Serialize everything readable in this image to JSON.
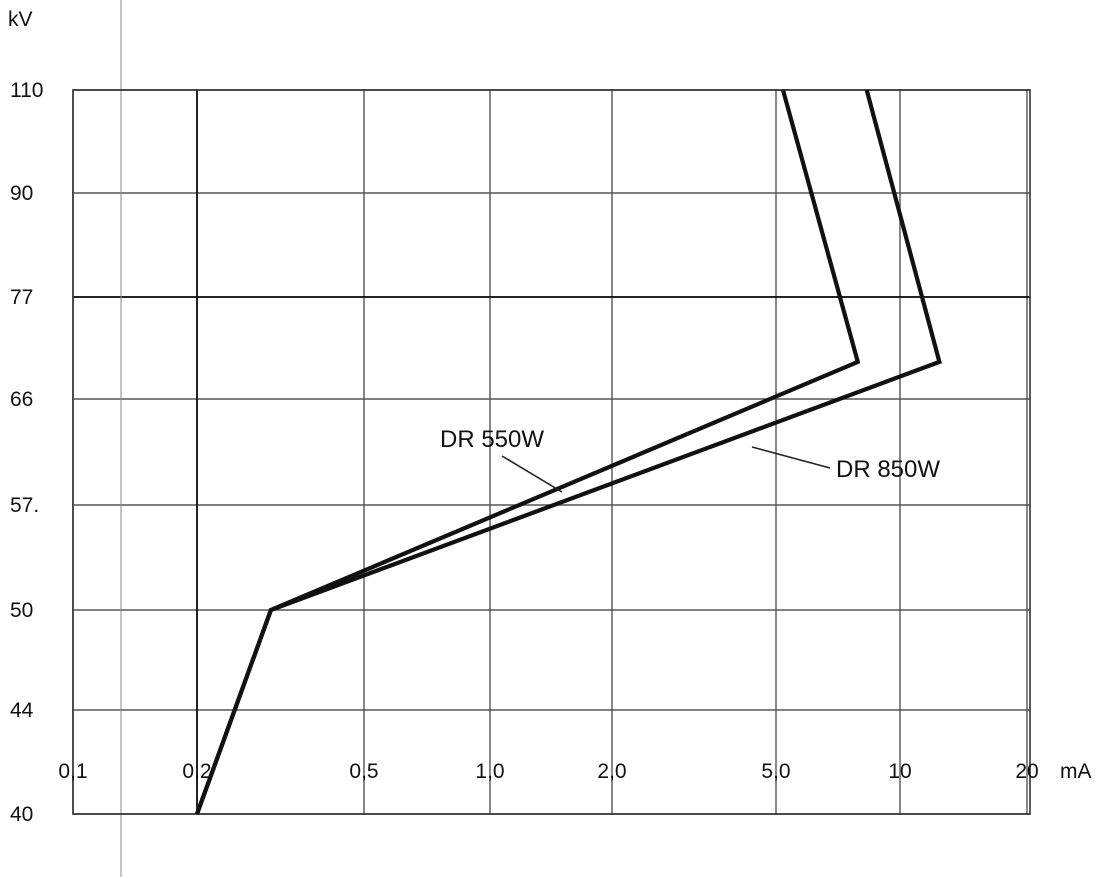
{
  "chart_data": {
    "type": "line",
    "xscale": "log",
    "yscale": "categorical-linear",
    "xlabel": "mA",
    "ylabel": "kV",
    "x_ticks": [
      {
        "value": 0.1,
        "label": "0,1"
      },
      {
        "value": 0.2,
        "label": "0,2"
      },
      {
        "value": 0.5,
        "label": "0,5"
      },
      {
        "value": 1.0,
        "label": "1,0"
      },
      {
        "value": 2.0,
        "label": "2,0"
      },
      {
        "value": 5.0,
        "label": "5,0"
      },
      {
        "value": 10,
        "label": "10"
      },
      {
        "value": 20,
        "label": "20"
      }
    ],
    "y_ticks": [
      {
        "value": 40,
        "label": "40"
      },
      {
        "value": 44,
        "label": "44"
      },
      {
        "value": 50,
        "label": "50"
      },
      {
        "value": 57,
        "label": "57."
      },
      {
        "value": 66,
        "label": "66"
      },
      {
        "value": 77,
        "label": "77"
      },
      {
        "value": 90,
        "label": "90"
      },
      {
        "value": 110,
        "label": "110"
      }
    ],
    "xlim": [
      0.1,
      20
    ],
    "ylim": [
      40,
      110
    ],
    "grid": true,
    "reference_lines": [
      {
        "axis": "y",
        "value": 77
      },
      {
        "axis": "x",
        "value": 0.2
      }
    ],
    "series": [
      {
        "name": "DR 550W",
        "points": [
          {
            "x": 0.2,
            "y": 40
          },
          {
            "x": 0.3,
            "y": 50
          },
          {
            "x": 7.9,
            "y": 70
          },
          {
            "x": 5.2,
            "y": 110
          }
        ]
      },
      {
        "name": "DR 850W",
        "points": [
          {
            "x": 0.2,
            "y": 40
          },
          {
            "x": 0.3,
            "y": 50
          },
          {
            "x": 12.4,
            "y": 70
          },
          {
            "x": 8.3,
            "y": 110
          }
        ]
      }
    ]
  }
}
